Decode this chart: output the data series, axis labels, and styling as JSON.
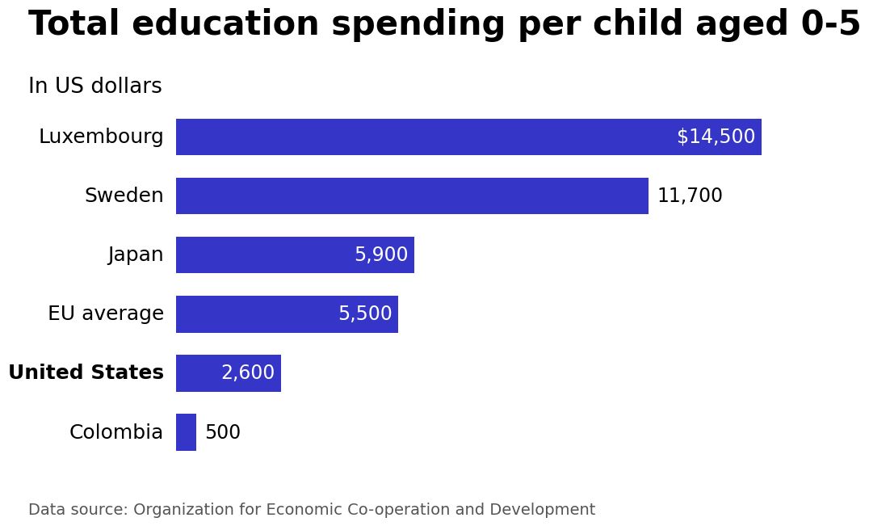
{
  "title": "Total education spending per child aged 0-5",
  "subtitle": "In US dollars",
  "source": "Data source: Organization for Economic Co-operation and Development",
  "categories": [
    "Luxembourg",
    "Sweden",
    "Japan",
    "EU average",
    "United States",
    "Colombia"
  ],
  "values": [
    14500,
    11700,
    5900,
    5500,
    2600,
    500
  ],
  "bar_color": "#3535c8",
  "labels": [
    "$14,500",
    "11,700",
    "5,900",
    "5,500",
    "2,600",
    "500"
  ],
  "bold_categories": [
    "United States"
  ],
  "label_color_inside": [
    "Luxembourg",
    "Japan",
    "EU average",
    "United States"
  ],
  "label_color_outside": [
    "Sweden",
    "Colombia"
  ],
  "xlim": [
    0,
    16200
  ],
  "background_color": "#ffffff",
  "title_fontsize": 30,
  "subtitle_fontsize": 19,
  "source_fontsize": 14,
  "label_fontsize": 17,
  "category_fontsize": 18,
  "bar_height": 0.62
}
